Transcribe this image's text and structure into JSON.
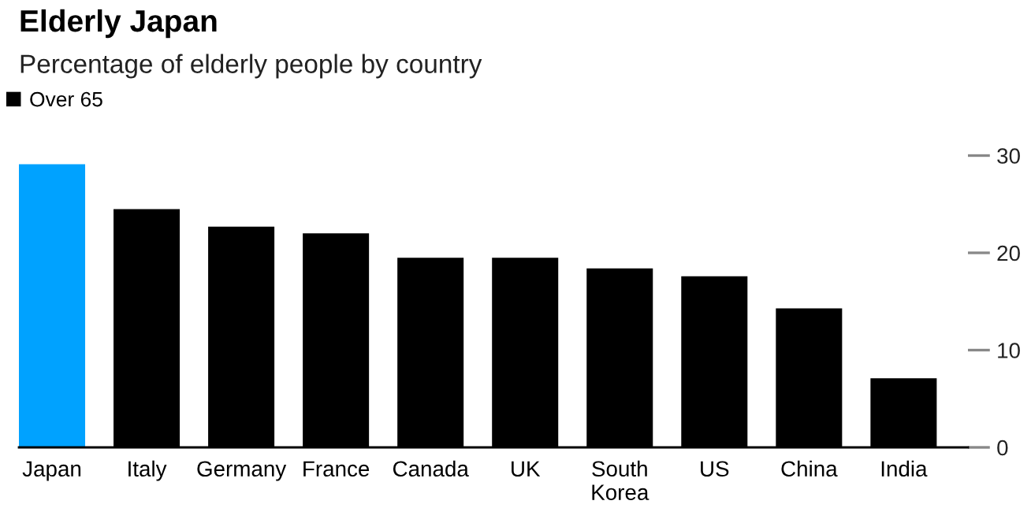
{
  "chart_data": {
    "type": "bar",
    "title": "Elderly Japan",
    "subtitle": "Percentage of elderly people by country",
    "categories": [
      "Japan",
      "Italy",
      "Germany",
      "France",
      "Canada",
      "UK",
      "South\nKorea",
      "US",
      "China",
      "India"
    ],
    "series": [
      {
        "name": "Over 65",
        "color": "#000000",
        "colors": [
          "#00a2ff",
          "#000000",
          "#000000",
          "#000000",
          "#000000",
          "#000000",
          "#000000",
          "#000000",
          "#000000",
          "#000000"
        ],
        "values": [
          29.1,
          24.5,
          22.7,
          22.0,
          19.5,
          19.5,
          18.4,
          17.6,
          14.3,
          7.1
        ]
      }
    ],
    "ylim": [
      0,
      30
    ],
    "yticks": [
      0,
      10,
      20,
      30
    ],
    "grid": false,
    "legend": "top left"
  }
}
